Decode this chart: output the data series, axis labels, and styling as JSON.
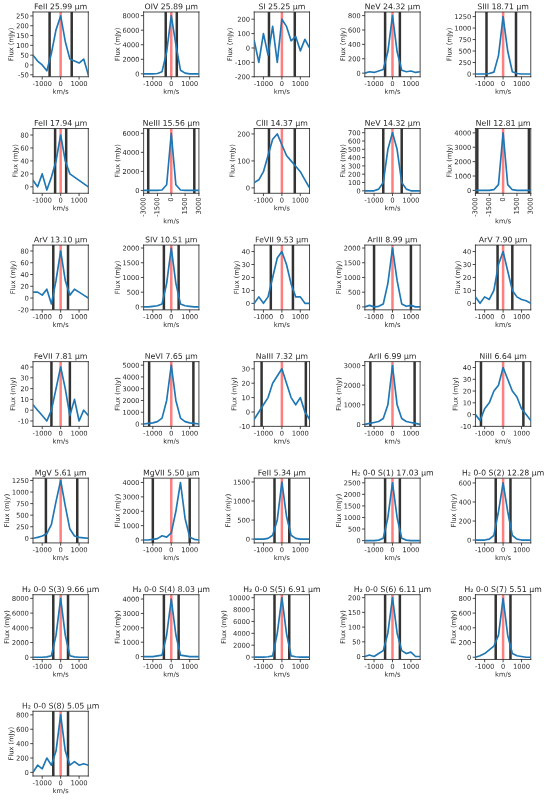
{
  "chart_data": [
    {
      "type": "line",
      "title": "FeII 25.99 μm",
      "xlabel": "km/s",
      "ylabel": "Flux (mJy)",
      "color": "#1f77b4",
      "x": [
        -1500,
        -1250,
        -1000,
        -750,
        -500,
        -250,
        0,
        250,
        500,
        750,
        1000,
        1250,
        1500
      ],
      "values": [
        50,
        20,
        0,
        -30,
        60,
        180,
        250,
        120,
        30,
        20,
        10,
        30,
        -50
      ],
      "xlim": [
        -1500,
        1500
      ],
      "xticks": [
        -1000,
        0,
        1000
      ],
      "ylim": [
        -60,
        270
      ],
      "yticks": [
        -50,
        0,
        50,
        100,
        150,
        200,
        250
      ],
      "ref_lines": [
        {
          "axis": "x",
          "value": -600,
          "color": "#333333"
        },
        {
          "axis": "x",
          "value": 600,
          "color": "#333333"
        },
        {
          "axis": "x",
          "value": 0,
          "color": "#ff7f7f"
        }
      ]
    },
    {
      "type": "line",
      "title": "OIV 25.89 μm",
      "xlabel": "km/s",
      "ylabel": "Flux (mJy)",
      "color": "#1f77b4",
      "x": [
        -1500,
        -1250,
        -1000,
        -750,
        -500,
        -250,
        0,
        250,
        500,
        750,
        1000,
        1250,
        1500
      ],
      "values": [
        0,
        0,
        0,
        50,
        300,
        3000,
        8000,
        4000,
        500,
        100,
        0,
        0,
        0
      ],
      "xlim": [
        -1500,
        1500
      ],
      "xticks": [
        -1000,
        0,
        1000
      ],
      "ylim": [
        -400,
        8500
      ],
      "yticks": [
        0,
        2000,
        4000,
        6000,
        8000
      ],
      "ref_lines": [
        {
          "axis": "x",
          "value": -300,
          "color": "#333333"
        },
        {
          "axis": "x",
          "value": 300,
          "color": "#333333"
        },
        {
          "axis": "x",
          "value": 0,
          "color": "#ff7f7f"
        }
      ]
    },
    {
      "type": "line",
      "title": "SI 25.25 μm",
      "xlabel": "km/s",
      "ylabel": "Flux (mJy)",
      "color": "#1f77b4",
      "x": [
        -1500,
        -1250,
        -1000,
        -750,
        -500,
        -250,
        0,
        250,
        500,
        750,
        1000,
        1250,
        1500
      ],
      "values": [
        50,
        -100,
        100,
        -50,
        150,
        -100,
        200,
        150,
        50,
        80,
        -20,
        60,
        0
      ],
      "xlim": [
        -1500,
        1500
      ],
      "xticks": [
        -1000,
        0,
        1000
      ],
      "ylim": [
        -200,
        250
      ],
      "yticks": [
        -200,
        -100,
        0,
        100,
        200
      ],
      "ref_lines": [
        {
          "axis": "x",
          "value": -700,
          "color": "#333333"
        },
        {
          "axis": "x",
          "value": 700,
          "color": "#333333"
        },
        {
          "axis": "x",
          "value": 0,
          "color": "#ff7f7f"
        }
      ]
    },
    {
      "type": "line",
      "title": "NeV 24.32 μm",
      "xlabel": "km/s",
      "ylabel": "Flux (mJy)",
      "color": "#1f77b4",
      "x": [
        -1500,
        -1250,
        -1000,
        -750,
        -500,
        -250,
        0,
        250,
        500,
        750,
        1000,
        1250,
        1500
      ],
      "values": [
        0,
        20,
        10,
        30,
        50,
        300,
        800,
        300,
        40,
        20,
        30,
        10,
        20
      ],
      "xlim": [
        -1500,
        1500
      ],
      "xticks": [
        -1000,
        0,
        1000
      ],
      "ylim": [
        -50,
        850
      ],
      "yticks": [
        0,
        200,
        400,
        600,
        800
      ],
      "ref_lines": [
        {
          "axis": "x",
          "value": -400,
          "color": "#333333"
        },
        {
          "axis": "x",
          "value": 400,
          "color": "#333333"
        },
        {
          "axis": "x",
          "value": 0,
          "color": "#ff7f7f"
        }
      ]
    },
    {
      "type": "line",
      "title": "SIII 18.71 μm",
      "xlabel": "km/s",
      "ylabel": "Flux (mJy)",
      "color": "#1f77b4",
      "x": [
        -1500,
        -1250,
        -1000,
        -750,
        -500,
        -250,
        0,
        250,
        500,
        750,
        1000,
        1250,
        1500
      ],
      "values": [
        0,
        0,
        0,
        10,
        40,
        400,
        1250,
        500,
        50,
        10,
        0,
        0,
        0
      ],
      "xlim": [
        -1500,
        1500
      ],
      "xticks": [
        -1000,
        0,
        1000
      ],
      "ylim": [
        -60,
        1350
      ],
      "yticks": [
        0,
        250,
        500,
        750,
        1000,
        1250
      ],
      "ref_lines": [
        {
          "axis": "x",
          "value": -900,
          "color": "#333333"
        },
        {
          "axis": "x",
          "value": 700,
          "color": "#333333"
        },
        {
          "axis": "x",
          "value": 0,
          "color": "#ff7f7f"
        }
      ]
    },
    {
      "type": "line",
      "title": "FeII 17.94 μm",
      "xlabel": "km/s",
      "ylabel": "Flux (mJy)",
      "color": "#1f77b4",
      "x": [
        -1500,
        -1250,
        -1000,
        -750,
        -500,
        -250,
        0,
        250,
        500,
        750,
        1000,
        1250,
        1500
      ],
      "values": [
        10,
        0,
        20,
        -5,
        15,
        40,
        80,
        40,
        20,
        15,
        10,
        5,
        0
      ],
      "xlim": [
        -1500,
        1500
      ],
      "xticks": [
        -1000,
        0,
        1000
      ],
      "ylim": [
        -10,
        90
      ],
      "yticks": [
        0,
        20,
        40,
        60,
        80
      ],
      "ref_lines": [
        {
          "axis": "x",
          "value": -300,
          "color": "#333333"
        },
        {
          "axis": "x",
          "value": 300,
          "color": "#333333"
        },
        {
          "axis": "x",
          "value": 0,
          "color": "#ff7f7f"
        }
      ]
    },
    {
      "type": "line",
      "title": "NeIII 15.56 μm",
      "xlabel": "km/s",
      "ylabel": "Flux (mJy)",
      "color": "#1f77b4",
      "x": [
        -3000,
        -2500,
        -2000,
        -1500,
        -1000,
        -500,
        0,
        500,
        1000,
        1500,
        2000,
        2500,
        3000
      ],
      "values": [
        0,
        0,
        0,
        0,
        50,
        600,
        6000,
        600,
        50,
        0,
        0,
        0,
        0
      ],
      "xlim": [
        -3000,
        3000
      ],
      "xticks": [
        -3000,
        -1500,
        0,
        1500,
        3000
      ],
      "ylim": [
        -300,
        6500
      ],
      "yticks": [
        0,
        2000,
        4000,
        6000
      ],
      "ref_lines": [
        {
          "axis": "x",
          "value": -2500,
          "color": "#333333"
        },
        {
          "axis": "x",
          "value": 2500,
          "color": "#333333"
        },
        {
          "axis": "x",
          "value": 0,
          "color": "#ff7f7f"
        }
      ]
    },
    {
      "type": "line",
      "title": "ClII 14.37 μm",
      "xlabel": "km/s",
      "ylabel": "Flux (mJy)",
      "color": "#1f77b4",
      "x": [
        -1500,
        -1250,
        -1000,
        -750,
        -500,
        -250,
        0,
        250,
        500,
        750,
        1000,
        1250,
        1500
      ],
      "values": [
        20,
        30,
        60,
        120,
        180,
        200,
        160,
        120,
        100,
        80,
        60,
        30,
        0
      ],
      "xlim": [
        -1500,
        1500
      ],
      "xticks": [
        -1000,
        0,
        1000
      ],
      "ylim": [
        -20,
        220
      ],
      "yticks": [
        0,
        100,
        200
      ],
      "ref_lines": [
        {
          "axis": "x",
          "value": -700,
          "color": "#333333"
        },
        {
          "axis": "x",
          "value": 700,
          "color": "#333333"
        },
        {
          "axis": "x",
          "value": 0,
          "color": "#ff7f7f"
        }
      ]
    },
    {
      "type": "line",
      "title": "NeV 14.32 μm",
      "xlabel": "km/s",
      "ylabel": "Flux (mJy)",
      "color": "#1f77b4",
      "x": [
        -1500,
        -1250,
        -1000,
        -750,
        -500,
        -250,
        0,
        250,
        500,
        750,
        1000,
        1250,
        1500
      ],
      "values": [
        0,
        0,
        0,
        20,
        100,
        500,
        700,
        500,
        100,
        20,
        0,
        0,
        0
      ],
      "xlim": [
        -1500,
        1500
      ],
      "xticks": [
        -1000,
        0,
        1000
      ],
      "ylim": [
        -30,
        750
      ],
      "yticks": [
        0,
        100,
        200,
        300,
        400,
        500,
        600,
        700
      ],
      "ref_lines": [
        {
          "axis": "x",
          "value": -500,
          "color": "#333333"
        },
        {
          "axis": "x",
          "value": 500,
          "color": "#333333"
        },
        {
          "axis": "x",
          "value": 0,
          "color": "#ff7f7f"
        }
      ]
    },
    {
      "type": "line",
      "title": "NeII 12.81 μm",
      "xlabel": "km/s",
      "ylabel": "Flux (mJy)",
      "color": "#1f77b4",
      "x": [
        -3000,
        -2500,
        -2000,
        -1500,
        -1000,
        -500,
        0,
        500,
        1000,
        1500,
        2000,
        2500,
        3000
      ],
      "values": [
        0,
        0,
        0,
        0,
        50,
        400,
        4000,
        400,
        50,
        0,
        0,
        0,
        0
      ],
      "xlim": [
        -3000,
        3000
      ],
      "xticks": [
        -3000,
        -1500,
        0,
        1500,
        3000
      ],
      "ylim": [
        -200,
        4300
      ],
      "yticks": [
        0,
        1000,
        2000,
        3000,
        4000
      ],
      "ref_lines": [
        {
          "axis": "x",
          "value": -2800,
          "color": "#333333"
        },
        {
          "axis": "x",
          "value": 2800,
          "color": "#333333"
        },
        {
          "axis": "x",
          "value": 0,
          "color": "#ff7f7f"
        }
      ]
    },
    {
      "type": "line",
      "title": "ArV 13.10 μm",
      "xlabel": "km/s",
      "ylabel": "Flux (mJy)",
      "color": "#1f77b4",
      "x": [
        -1500,
        -1250,
        -1000,
        -750,
        -500,
        -250,
        0,
        250,
        500,
        750,
        1000,
        1250,
        1500
      ],
      "values": [
        10,
        10,
        5,
        15,
        -10,
        30,
        80,
        30,
        5,
        15,
        10,
        5,
        0
      ],
      "xlim": [
        -1500,
        1500
      ],
      "xticks": [
        -1000,
        0,
        1000
      ],
      "ylim": [
        -20,
        90
      ],
      "yticks": [
        -20,
        0,
        20,
        40,
        60,
        80
      ],
      "ref_lines": [
        {
          "axis": "x",
          "value": -400,
          "color": "#333333"
        },
        {
          "axis": "x",
          "value": 400,
          "color": "#333333"
        },
        {
          "axis": "x",
          "value": 0,
          "color": "#ff7f7f"
        }
      ]
    },
    {
      "type": "line",
      "title": "SIV 10.51 μm",
      "xlabel": "km/s",
      "ylabel": "Flux (mJy)",
      "color": "#1f77b4",
      "x": [
        -1500,
        -1250,
        -1000,
        -750,
        -500,
        -250,
        0,
        250,
        500,
        750,
        1000,
        1250,
        1500
      ],
      "values": [
        0,
        0,
        20,
        40,
        100,
        800,
        2000,
        800,
        100,
        40,
        20,
        0,
        0
      ],
      "xlim": [
        -1500,
        1500
      ],
      "xticks": [
        -1000,
        0,
        1000
      ],
      "ylim": [
        -100,
        2100
      ],
      "yticks": [
        0,
        500,
        1000,
        1500,
        2000
      ],
      "ref_lines": [
        {
          "axis": "x",
          "value": -400,
          "color": "#333333"
        },
        {
          "axis": "x",
          "value": 400,
          "color": "#333333"
        },
        {
          "axis": "x",
          "value": 0,
          "color": "#ff7f7f"
        }
      ]
    },
    {
      "type": "line",
      "title": "FeVII 9.53 μm",
      "xlabel": "km/s",
      "ylabel": "Flux (mJy)",
      "color": "#1f77b4",
      "x": [
        -1500,
        -1250,
        -1000,
        -750,
        -500,
        -250,
        0,
        250,
        500,
        750,
        1000,
        1250,
        1500
      ],
      "values": [
        0,
        5,
        0,
        5,
        20,
        35,
        40,
        30,
        15,
        5,
        5,
        0,
        0
      ],
      "xlim": [
        -1500,
        1500
      ],
      "xticks": [
        -1000,
        0,
        1000
      ],
      "ylim": [
        -5,
        45
      ],
      "yticks": [
        0,
        10,
        20,
        30,
        40
      ],
      "ref_lines": [
        {
          "axis": "x",
          "value": -600,
          "color": "#333333"
        },
        {
          "axis": "x",
          "value": 600,
          "color": "#333333"
        },
        {
          "axis": "x",
          "value": 0,
          "color": "#ff7f7f"
        }
      ]
    },
    {
      "type": "line",
      "title": "ArIII 8.99 μm",
      "xlabel": "km/s",
      "ylabel": "Flux (mJy)",
      "color": "#1f77b4",
      "x": [
        -1500,
        -1250,
        -1000,
        -750,
        -500,
        -250,
        0,
        250,
        500,
        750,
        1000,
        1250,
        1500
      ],
      "values": [
        0,
        50,
        0,
        20,
        100,
        800,
        2000,
        900,
        100,
        20,
        50,
        0,
        0
      ],
      "xlim": [
        -1500,
        1500
      ],
      "xticks": [
        -1000,
        0,
        1000
      ],
      "ylim": [
        -100,
        2100
      ],
      "yticks": [
        0,
        500,
        1000,
        1500,
        2000
      ],
      "ref_lines": [
        {
          "axis": "x",
          "value": -1000,
          "color": "#333333"
        },
        {
          "axis": "x",
          "value": 1000,
          "color": "#333333"
        },
        {
          "axis": "x",
          "value": 0,
          "color": "#ff7f7f"
        }
      ]
    },
    {
      "type": "line",
      "title": "ArV 7.90 μm",
      "xlabel": "km/s",
      "ylabel": "Flux (mJy)",
      "color": "#1f77b4",
      "x": [
        -1500,
        -1250,
        -1000,
        -750,
        -500,
        -250,
        0,
        250,
        500,
        750,
        1000,
        1250,
        1500
      ],
      "values": [
        5,
        0,
        5,
        3,
        10,
        30,
        40,
        25,
        10,
        5,
        3,
        2,
        0
      ],
      "xlim": [
        -1500,
        1500
      ],
      "xticks": [
        -1000,
        0,
        1000
      ],
      "ylim": [
        -5,
        45
      ],
      "yticks": [
        0,
        10,
        20,
        30,
        40
      ],
      "ref_lines": [
        {
          "axis": "x",
          "value": -300,
          "color": "#333333"
        },
        {
          "axis": "x",
          "value": 500,
          "color": "#333333"
        },
        {
          "axis": "x",
          "value": 0,
          "color": "#ff7f7f"
        }
      ]
    },
    {
      "type": "line",
      "title": "FeVII 7.81 μm",
      "xlabel": "km/s",
      "ylabel": "Flux (mJy)",
      "color": "#1f77b4",
      "x": [
        -1500,
        -1250,
        -1000,
        -750,
        -500,
        -250,
        0,
        250,
        500,
        750,
        1000,
        1250,
        1500
      ],
      "values": [
        5,
        0,
        -5,
        -10,
        0,
        20,
        40,
        20,
        -5,
        10,
        -10,
        0,
        -5
      ],
      "xlim": [
        -1500,
        1500
      ],
      "xticks": [
        -1000,
        0,
        1000
      ],
      "ylim": [
        -15,
        45
      ],
      "yticks": [
        -10,
        0,
        10,
        20,
        30,
        40
      ],
      "ref_lines": [
        {
          "axis": "x",
          "value": -500,
          "color": "#333333"
        },
        {
          "axis": "x",
          "value": 500,
          "color": "#333333"
        },
        {
          "axis": "x",
          "value": 0,
          "color": "#ff7f7f"
        }
      ]
    },
    {
      "type": "line",
      "title": "NeVI 7.65 μm",
      "xlabel": "km/s",
      "ylabel": "Flux (mJy)",
      "color": "#1f77b4",
      "x": [
        -1500,
        -1250,
        -1000,
        -750,
        -500,
        -250,
        0,
        250,
        500,
        750,
        1000,
        1250,
        1500
      ],
      "values": [
        0,
        50,
        100,
        200,
        500,
        2000,
        5000,
        2000,
        500,
        200,
        100,
        50,
        0
      ],
      "xlim": [
        -1500,
        1500
      ],
      "xticks": [
        -1000,
        0,
        1000
      ],
      "ylim": [
        -200,
        5300
      ],
      "yticks": [
        0,
        1000,
        2000,
        3000,
        4000,
        5000
      ],
      "ref_lines": [
        {
          "axis": "x",
          "value": -1200,
          "color": "#333333"
        },
        {
          "axis": "x",
          "value": 1200,
          "color": "#333333"
        },
        {
          "axis": "x",
          "value": 0,
          "color": "#ff7f7f"
        }
      ]
    },
    {
      "type": "line",
      "title": "NaIII 7.32 μm",
      "xlabel": "km/s",
      "ylabel": "Flux (mJy)",
      "color": "#1f77b4",
      "x": [
        -1500,
        -1250,
        -1000,
        -750,
        -500,
        -250,
        0,
        250,
        500,
        750,
        1000,
        1250,
        1500
      ],
      "values": [
        -5,
        0,
        5,
        10,
        20,
        25,
        30,
        20,
        10,
        5,
        10,
        0,
        -5
      ],
      "xlim": [
        -1500,
        1500
      ],
      "xticks": [
        -1000,
        0,
        1000
      ],
      "ylim": [
        -10,
        35
      ],
      "yticks": [
        -10,
        0,
        10,
        20,
        30
      ],
      "ref_lines": [
        {
          "axis": "x",
          "value": -1100,
          "color": "#333333"
        },
        {
          "axis": "x",
          "value": 1300,
          "color": "#333333"
        },
        {
          "axis": "x",
          "value": 0,
          "color": "#ff7f7f"
        }
      ]
    },
    {
      "type": "line",
      "title": "ArII 6.99 μm",
      "xlabel": "km/s",
      "ylabel": "Flux (mJy)",
      "color": "#1f77b4",
      "x": [
        -1500,
        -1250,
        -1000,
        -750,
        -500,
        -250,
        0,
        250,
        500,
        750,
        1000,
        1250,
        1500
      ],
      "values": [
        0,
        50,
        100,
        150,
        300,
        1000,
        3000,
        1000,
        300,
        150,
        100,
        50,
        0
      ],
      "xlim": [
        -1500,
        1500
      ],
      "xticks": [
        -1000,
        0,
        1000
      ],
      "ylim": [
        -100,
        3200
      ],
      "yticks": [
        0,
        1000,
        2000,
        3000
      ],
      "ref_lines": [
        {
          "axis": "x",
          "value": -1200,
          "color": "#333333"
        },
        {
          "axis": "x",
          "value": 1200,
          "color": "#333333"
        },
        {
          "axis": "x",
          "value": 0,
          "color": "#ff7f7f"
        }
      ]
    },
    {
      "type": "line",
      "title": "NiII 6.64 μm",
      "xlabel": "km/s",
      "ylabel": "Flux (mJy)",
      "color": "#1f77b4",
      "x": [
        -1500,
        -1250,
        -1000,
        -750,
        -500,
        -250,
        0,
        250,
        500,
        750,
        1000,
        1250,
        1500
      ],
      "values": [
        0,
        -5,
        5,
        10,
        20,
        25,
        40,
        30,
        20,
        15,
        5,
        0,
        -5
      ],
      "xlim": [
        -1500,
        1500
      ],
      "xticks": [
        -1000,
        0,
        1000
      ],
      "ylim": [
        -10,
        45
      ],
      "yticks": [
        -10,
        0,
        10,
        20,
        30,
        40
      ],
      "ref_lines": [
        {
          "axis": "x",
          "value": -1200,
          "color": "#333333"
        },
        {
          "axis": "x",
          "value": 1100,
          "color": "#333333"
        },
        {
          "axis": "x",
          "value": 0,
          "color": "#ff7f7f"
        }
      ]
    },
    {
      "type": "line",
      "title": "MgV 5.61 μm",
      "xlabel": "km/s",
      "ylabel": "Flux (mJy)",
      "color": "#1f77b4",
      "x": [
        -1500,
        -1250,
        -1000,
        -750,
        -500,
        -250,
        0,
        250,
        500,
        750,
        1000,
        1250,
        1500
      ],
      "values": [
        0,
        20,
        50,
        100,
        300,
        800,
        1250,
        700,
        200,
        50,
        20,
        10,
        0
      ],
      "xlim": [
        -1500,
        1500
      ],
      "xticks": [
        -1000,
        0,
        1000
      ],
      "ylim": [
        -100,
        1300
      ],
      "yticks": [
        0,
        250,
        500,
        750,
        1000,
        1250
      ],
      "ref_lines": [
        {
          "axis": "x",
          "value": -800,
          "color": "#333333"
        },
        {
          "axis": "x",
          "value": 900,
          "color": "#333333"
        },
        {
          "axis": "x",
          "value": 0,
          "color": "#ff7f7f"
        }
      ]
    },
    {
      "type": "line",
      "title": "MgVII 5.50 μm",
      "xlabel": "km/s",
      "ylabel": "Flux (mJy)",
      "color": "#1f77b4",
      "x": [
        -1500,
        -1250,
        -1000,
        -750,
        -500,
        -250,
        0,
        250,
        500,
        750,
        1000,
        1250,
        1500
      ],
      "values": [
        0,
        0,
        50,
        100,
        300,
        200,
        500,
        2000,
        4000,
        1500,
        200,
        50,
        0
      ],
      "xlim": [
        -1500,
        1500
      ],
      "xticks": [
        -1000,
        0,
        1000
      ],
      "ylim": [
        -200,
        4300
      ],
      "yticks": [
        0,
        1000,
        2000,
        3000,
        4000
      ],
      "ref_lines": [
        {
          "axis": "x",
          "value": -1000,
          "color": "#333333"
        },
        {
          "axis": "x",
          "value": 1000,
          "color": "#333333"
        },
        {
          "axis": "x",
          "value": 0,
          "color": "#ff7f7f"
        }
      ]
    },
    {
      "type": "line",
      "title": "FeII 5.34 μm",
      "xlabel": "km/s",
      "ylabel": "Flux (mJy)",
      "color": "#1f77b4",
      "x": [
        -1500,
        -1250,
        -1000,
        -750,
        -500,
        -250,
        0,
        250,
        500,
        750,
        1000,
        1250,
        1500
      ],
      "values": [
        0,
        0,
        0,
        20,
        100,
        500,
        1500,
        600,
        100,
        20,
        0,
        0,
        0
      ],
      "xlim": [
        -1500,
        1500
      ],
      "xticks": [
        -1000,
        0,
        1000
      ],
      "ylim": [
        -100,
        1600
      ],
      "yticks": [
        0,
        500,
        1000,
        1500
      ],
      "ref_lines": [
        {
          "axis": "x",
          "value": -400,
          "color": "#333333"
        },
        {
          "axis": "x",
          "value": 400,
          "color": "#333333"
        },
        {
          "axis": "x",
          "value": 0,
          "color": "#ff7f7f"
        }
      ]
    },
    {
      "type": "line",
      "title": "H₂ 0-0 S(1) 17.03 μm",
      "xlabel": "km/s",
      "ylabel": "Flux (mJy)",
      "color": "#1f77b4",
      "x": [
        -1500,
        -1250,
        -1000,
        -750,
        -500,
        -250,
        0,
        250,
        500,
        750,
        1000,
        1250,
        1500
      ],
      "values": [
        0,
        0,
        0,
        20,
        100,
        1000,
        2500,
        1000,
        100,
        20,
        0,
        0,
        0
      ],
      "xlim": [
        -1500,
        1500
      ],
      "xticks": [
        -1000,
        0,
        1000
      ],
      "ylim": [
        -100,
        2700
      ],
      "yticks": [
        0,
        500,
        1000,
        1500,
        2000,
        2500
      ],
      "ref_lines": [
        {
          "axis": "x",
          "value": -400,
          "color": "#333333"
        },
        {
          "axis": "x",
          "value": 400,
          "color": "#333333"
        },
        {
          "axis": "x",
          "value": 0,
          "color": "#ff7f7f"
        }
      ]
    },
    {
      "type": "line",
      "title": "H₂ 0-0 S(2) 12.28 μm",
      "xlabel": "km/s",
      "ylabel": "Flux (mJy)",
      "color": "#1f77b4",
      "x": [
        -1500,
        -1250,
        -1000,
        -750,
        -500,
        -250,
        0,
        250,
        500,
        750,
        1000,
        1250,
        1500
      ],
      "values": [
        0,
        0,
        0,
        10,
        50,
        300,
        600,
        300,
        50,
        10,
        0,
        0,
        0
      ],
      "xlim": [
        -1500,
        1500
      ],
      "xticks": [
        -1000,
        0,
        1000
      ],
      "ylim": [
        -30,
        650
      ],
      "yticks": [
        0,
        200,
        400,
        600
      ],
      "ref_lines": [
        {
          "axis": "x",
          "value": -400,
          "color": "#333333"
        },
        {
          "axis": "x",
          "value": 400,
          "color": "#333333"
        },
        {
          "axis": "x",
          "value": 0,
          "color": "#ff7f7f"
        }
      ]
    },
    {
      "type": "line",
      "title": "H₂ 0-0 S(3) 9.66 μm",
      "xlabel": "km/s",
      "ylabel": "Flux (mJy)",
      "color": "#1f77b4",
      "x": [
        -1500,
        -1250,
        -1000,
        -750,
        -500,
        -250,
        0,
        250,
        500,
        750,
        1000,
        1250,
        1500
      ],
      "values": [
        0,
        0,
        0,
        50,
        200,
        3000,
        8000,
        3000,
        200,
        50,
        0,
        0,
        0
      ],
      "xlim": [
        -1500,
        1500
      ],
      "xticks": [
        -1000,
        0,
        1000
      ],
      "ylim": [
        -300,
        8500
      ],
      "yticks": [
        0,
        2000,
        4000,
        6000,
        8000
      ],
      "ref_lines": [
        {
          "axis": "x",
          "value": -400,
          "color": "#333333"
        },
        {
          "axis": "x",
          "value": 400,
          "color": "#333333"
        },
        {
          "axis": "x",
          "value": 0,
          "color": "#ff7f7f"
        }
      ]
    },
    {
      "type": "line",
      "title": "H₂ 0-0 S(4) 8.03 μm",
      "xlabel": "km/s",
      "ylabel": "Flux (mJy)",
      "color": "#1f77b4",
      "x": [
        -1500,
        -1250,
        -1000,
        -750,
        -500,
        -250,
        0,
        250,
        500,
        750,
        1000,
        1250,
        1500
      ],
      "values": [
        0,
        0,
        0,
        50,
        100,
        1500,
        4000,
        1500,
        100,
        50,
        0,
        0,
        0
      ],
      "xlim": [
        -1500,
        1500
      ],
      "xticks": [
        -1000,
        0,
        1000
      ],
      "ylim": [
        -200,
        4300
      ],
      "yticks": [
        0,
        1000,
        2000,
        3000,
        4000
      ],
      "ref_lines": [
        {
          "axis": "x",
          "value": -400,
          "color": "#333333"
        },
        {
          "axis": "x",
          "value": 400,
          "color": "#333333"
        },
        {
          "axis": "x",
          "value": 0,
          "color": "#ff7f7f"
        }
      ]
    },
    {
      "type": "line",
      "title": "H₂ 0-0 S(5) 6.91 μm",
      "xlabel": "km/s",
      "ylabel": "Flux (mJy)",
      "color": "#1f77b4",
      "x": [
        -1500,
        -1250,
        -1000,
        -750,
        -500,
        -250,
        0,
        250,
        500,
        750,
        1000,
        1250,
        1500
      ],
      "values": [
        0,
        0,
        0,
        50,
        200,
        4000,
        10000,
        4000,
        200,
        50,
        0,
        0,
        0
      ],
      "xlim": [
        -1500,
        1500
      ],
      "xticks": [
        -1000,
        0,
        1000
      ],
      "ylim": [
        -400,
        10500
      ],
      "yticks": [
        0,
        2000,
        4000,
        6000,
        8000,
        10000
      ],
      "ref_lines": [
        {
          "axis": "x",
          "value": -400,
          "color": "#333333"
        },
        {
          "axis": "x",
          "value": 400,
          "color": "#333333"
        },
        {
          "axis": "x",
          "value": 0,
          "color": "#ff7f7f"
        }
      ]
    },
    {
      "type": "line",
      "title": "H₂ 0-0 S(6) 6.11 μm",
      "xlabel": "km/s",
      "ylabel": "Flux (mJy)",
      "color": "#1f77b4",
      "x": [
        -1500,
        -1250,
        -1000,
        -750,
        -500,
        -250,
        0,
        250,
        500,
        750,
        1000,
        1250,
        1500
      ],
      "values": [
        0,
        5,
        0,
        10,
        20,
        80,
        200,
        80,
        20,
        10,
        15,
        0,
        0
      ],
      "xlim": [
        -1500,
        1500
      ],
      "xticks": [
        -1000,
        0,
        1000
      ],
      "ylim": [
        -10,
        210
      ],
      "yticks": [
        0,
        50,
        100,
        150,
        200
      ],
      "ref_lines": [
        {
          "axis": "x",
          "value": -400,
          "color": "#333333"
        },
        {
          "axis": "x",
          "value": 400,
          "color": "#333333"
        },
        {
          "axis": "x",
          "value": 0,
          "color": "#ff7f7f"
        }
      ]
    },
    {
      "type": "line",
      "title": "H₂ 0-0 S(7) 5.51 μm",
      "xlabel": "km/s",
      "ylabel": "Flux (mJy)",
      "color": "#1f77b4",
      "x": [
        -1500,
        -1250,
        -1000,
        -750,
        -500,
        -250,
        0,
        250,
        500,
        750,
        1000,
        1250,
        1500
      ],
      "values": [
        0,
        20,
        50,
        100,
        150,
        300,
        800,
        300,
        50,
        20,
        10,
        0,
        0
      ],
      "xlim": [
        -1500,
        1500
      ],
      "xticks": [
        -1000,
        0,
        1000
      ],
      "ylim": [
        -30,
        850
      ],
      "yticks": [
        0,
        200,
        400,
        600,
        800
      ],
      "ref_lines": [
        {
          "axis": "x",
          "value": -400,
          "color": "#333333"
        },
        {
          "axis": "x",
          "value": 400,
          "color": "#333333"
        },
        {
          "axis": "x",
          "value": 0,
          "color": "#ff7f7f"
        }
      ]
    },
    {
      "type": "line",
      "title": "H₂ 0-0 S(8) 5.05 μm",
      "xlabel": "km/s",
      "ylabel": "Flux (mJy)",
      "color": "#1f77b4",
      "x": [
        -1500,
        -1250,
        -1000,
        -750,
        -500,
        -250,
        0,
        250,
        500,
        750,
        1000,
        1250,
        1500
      ],
      "values": [
        0,
        100,
        50,
        200,
        100,
        300,
        800,
        300,
        100,
        150,
        100,
        120,
        100
      ],
      "xlim": [
        -1500,
        1500
      ],
      "xticks": [
        -1000,
        0,
        1000
      ],
      "ylim": [
        -50,
        850
      ],
      "yticks": [
        0,
        200,
        400,
        600,
        800
      ],
      "ref_lines": [
        {
          "axis": "x",
          "value": -400,
          "color": "#333333"
        },
        {
          "axis": "x",
          "value": 400,
          "color": "#333333"
        },
        {
          "axis": "x",
          "value": 0,
          "color": "#ff7f7f"
        }
      ]
    }
  ]
}
